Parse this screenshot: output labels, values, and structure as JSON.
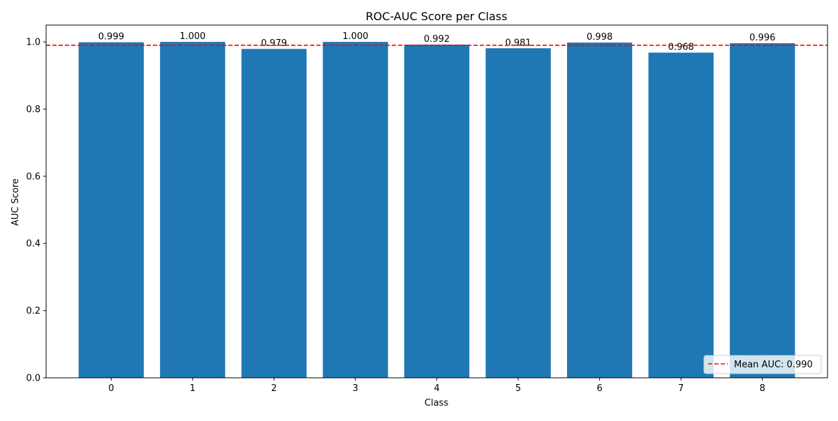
{
  "chart_data": {
    "type": "bar",
    "title": "ROC-AUC Score per Class",
    "xlabel": "Class",
    "ylabel": "AUC Score",
    "categories": [
      "0",
      "1",
      "2",
      "3",
      "4",
      "5",
      "6",
      "7",
      "8"
    ],
    "values": [
      0.999,
      1.0,
      0.979,
      1.0,
      0.992,
      0.981,
      0.998,
      0.968,
      0.996
    ],
    "value_labels": [
      "0.999",
      "1.000",
      "0.979",
      "1.000",
      "0.992",
      "0.981",
      "0.998",
      "0.968",
      "0.996"
    ],
    "ylim": [
      0,
      1.05
    ],
    "yticks": [
      0.0,
      0.2,
      0.4,
      0.6,
      0.8,
      1.0
    ],
    "ytick_labels": [
      "0.0",
      "0.2",
      "0.4",
      "0.6",
      "0.8",
      "1.0"
    ],
    "grid": false,
    "bar_color": "#1f77b4",
    "reference_line": {
      "value": 0.99,
      "label": "Mean AUC: 0.990",
      "color": "#ff0000",
      "style": "dashed"
    },
    "legend": {
      "placement": "bottom-right",
      "entries": [
        "Mean AUC: 0.990"
      ]
    }
  }
}
